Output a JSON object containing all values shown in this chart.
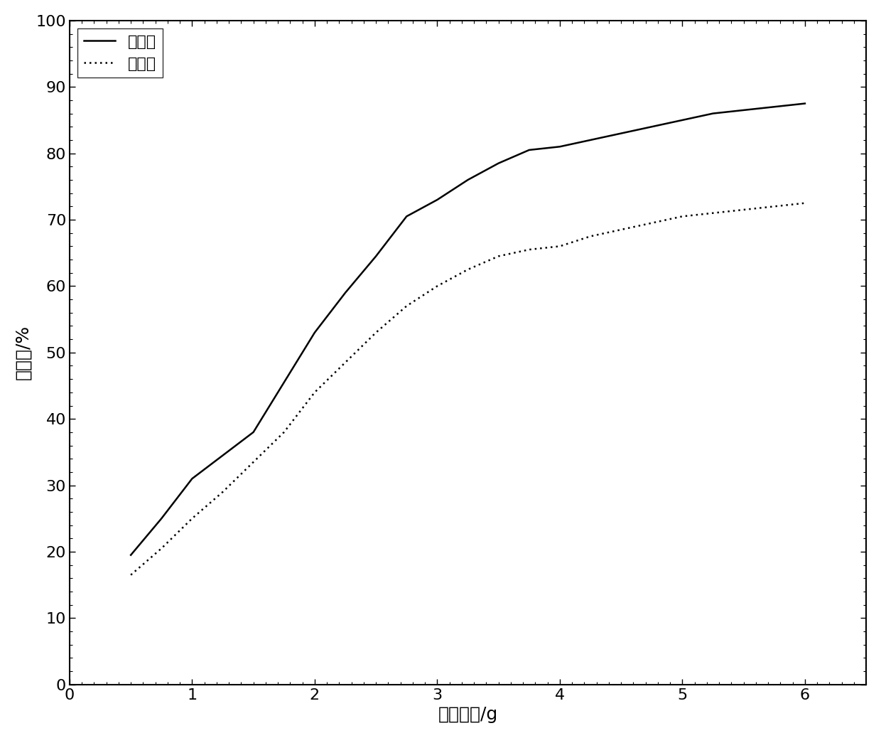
{
  "title": "",
  "xlabel": "纤维用量/g",
  "ylabel": "脱色率/%",
  "xlim": [
    0,
    6.5
  ],
  "ylim": [
    0,
    100
  ],
  "xticks": [
    0,
    1,
    2,
    3,
    4,
    5,
    6
  ],
  "yticks": [
    0,
    10,
    20,
    30,
    40,
    50,
    60,
    70,
    80,
    90,
    100
  ],
  "line1_label": "沉清汁",
  "line2_label": "混清汁",
  "line1_color": "#000000",
  "line2_color": "#000000",
  "line1_style": "solid",
  "line2_style": "dotted",
  "line1_x": [
    0.5,
    0.75,
    1.0,
    1.25,
    1.5,
    1.75,
    2.0,
    2.25,
    2.5,
    2.75,
    3.0,
    3.25,
    3.5,
    3.75,
    4.0,
    4.25,
    4.5,
    4.75,
    5.0,
    5.25,
    5.5,
    5.75,
    6.0
  ],
  "line1_y": [
    19.5,
    25.0,
    31.0,
    34.5,
    38.0,
    45.5,
    53.0,
    59.0,
    64.5,
    70.5,
    73.0,
    76.0,
    78.5,
    80.5,
    81.0,
    82.0,
    83.0,
    84.0,
    85.0,
    86.0,
    86.5,
    87.0,
    87.5
  ],
  "line2_x": [
    0.5,
    0.75,
    1.0,
    1.25,
    1.5,
    1.75,
    2.0,
    2.25,
    2.5,
    2.75,
    3.0,
    3.25,
    3.5,
    3.75,
    4.0,
    4.25,
    4.5,
    4.75,
    5.0,
    5.25,
    5.5,
    5.75,
    6.0
  ],
  "line2_y": [
    16.5,
    20.5,
    25.0,
    29.0,
    33.5,
    38.0,
    44.0,
    48.5,
    53.0,
    57.0,
    60.0,
    62.5,
    64.5,
    65.5,
    66.0,
    67.5,
    68.5,
    69.5,
    70.5,
    71.0,
    71.5,
    72.0,
    72.5
  ],
  "background_color": "#ffffff",
  "plot_bg_color": "#ffffff",
  "linewidth": 1.8,
  "legend_fontsize": 16,
  "axis_fontsize": 18,
  "tick_fontsize": 16
}
